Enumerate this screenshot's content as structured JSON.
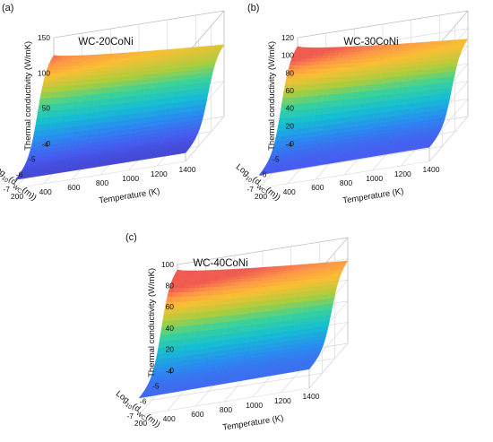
{
  "chart_data": [
    {
      "panel": "(a)",
      "type": "surface",
      "title": "WC-20CoNi",
      "xlabel": "Temperature (K)",
      "ylabel": "Log",
      "ylabel_sub": "10",
      "ylabel_mid": "(d",
      "ylabel_sub2": "WC",
      "ylabel_end": "(m))",
      "zlabel": "Thermal conductivity (W/mK)",
      "x_ticks": [
        "200",
        "400",
        "600",
        "800",
        "1000",
        "1200",
        "1400"
      ],
      "y_ticks": [
        "-4",
        "-5",
        "-6",
        "-7"
      ],
      "z_ticks": [
        "0",
        "50",
        "100",
        "150"
      ],
      "xlim": [
        200,
        1400
      ],
      "ylim": [
        -7,
        -4
      ],
      "zlim": [
        0,
        150
      ],
      "colormap": "parula",
      "corner_values": {
        "T200_logd-4": 125,
        "T1400_logd-4": 102,
        "T200_logd-7": 12,
        "T1400_logd-7": 12
      },
      "grid": true
    },
    {
      "panel": "(b)",
      "type": "surface",
      "title": "WC-30CoNi",
      "xlabel": "Temperature (K)",
      "ylabel": "Log",
      "ylabel_sub": "10",
      "ylabel_mid": "(d",
      "ylabel_sub2": "WC",
      "ylabel_end": "(m))",
      "zlabel": "Thermal conductivity (W/mK)",
      "x_ticks": [
        "200",
        "400",
        "600",
        "800",
        "1000",
        "1200",
        "1400"
      ],
      "y_ticks": [
        "-4",
        "-5",
        "-6",
        "-7"
      ],
      "z_ticks": [
        "0",
        "20",
        "40",
        "60",
        "80",
        "100",
        "120"
      ],
      "xlim": [
        200,
        1400
      ],
      "ylim": [
        -7,
        -4
      ],
      "zlim": [
        0,
        120
      ],
      "colormap": "parula",
      "corner_values": {
        "T200_logd-4": 110,
        "T1400_logd-4": 88,
        "T200_logd-7": 15,
        "T1400_logd-7": 16
      },
      "grid": true
    },
    {
      "panel": "(c)",
      "type": "surface",
      "title": "WC-40CoNi",
      "xlabel": "Temperature (K)",
      "ylabel": "Log",
      "ylabel_sub": "10",
      "ylabel_mid": "(d",
      "ylabel_sub2": "WC",
      "ylabel_end": "(m))",
      "zlabel": "Thermal conductivity (W/mK)",
      "x_ticks": [
        "200",
        "400",
        "600",
        "800",
        "1000",
        "1200",
        "1400"
      ],
      "y_ticks": [
        "-4",
        "-5",
        "-6",
        "-7"
      ],
      "z_ticks": [
        "0",
        "20",
        "40",
        "60",
        "80",
        "100"
      ],
      "xlim": [
        200,
        1400
      ],
      "ylim": [
        -7,
        -4
      ],
      "zlim": [
        0,
        100
      ],
      "colormap": "parula",
      "corner_values": {
        "T200_logd-4": 95,
        "T1400_logd-4": 78,
        "T200_logd-7": 16,
        "T1400_logd-7": 18
      },
      "grid": true
    }
  ]
}
